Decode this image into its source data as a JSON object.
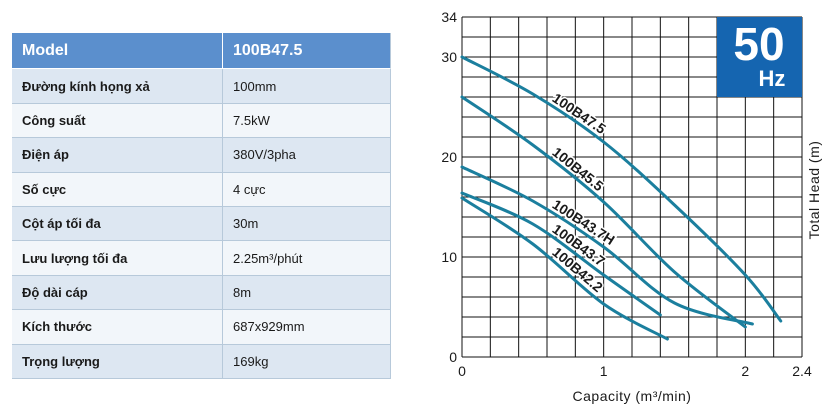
{
  "table": {
    "header": {
      "label": "Model",
      "value": "100B47.5"
    },
    "rows": [
      {
        "label": "Đường kính họng xả",
        "value": "100mm"
      },
      {
        "label": "Công suất",
        "value": "7.5kW"
      },
      {
        "label": "Điện áp",
        "value": "380V/3pha"
      },
      {
        "label": "Số cực",
        "value": "4 cực"
      },
      {
        "label": "Cột áp tối đa",
        "value": "30m"
      },
      {
        "label": "Lưu lượng tối đa",
        "value": "2.25m³/phút"
      },
      {
        "label": "Độ dài cáp",
        "value": "8m"
      },
      {
        "label": "Kích thước",
        "value": "687x929mm"
      },
      {
        "label": "Trọng lượng",
        "value": "169kg"
      }
    ]
  },
  "badge": {
    "value": "50",
    "unit": "Hz",
    "color": "#1565b0"
  },
  "chart_data": {
    "type": "line",
    "title": "",
    "xlabel": "Capacity (m³/min)",
    "ylabel": "Total Head (m)",
    "xlim": [
      0,
      2.4
    ],
    "ylim": [
      0,
      34
    ],
    "x_tick_labels": [
      "0",
      "1",
      "2",
      "2.4"
    ],
    "y_tick_labels": [
      "0",
      "10",
      "20",
      "30",
      "34"
    ],
    "grid": true,
    "line_color": "#1b7f9e",
    "series": [
      {
        "name": "100B47.5",
        "points": [
          [
            0,
            30
          ],
          [
            0.5,
            26.3
          ],
          [
            1.0,
            21.5
          ],
          [
            1.5,
            15.2
          ],
          [
            2.0,
            8.2
          ],
          [
            2.25,
            3.6
          ]
        ]
      },
      {
        "name": "100B45.5",
        "points": [
          [
            0,
            26
          ],
          [
            0.5,
            21.2
          ],
          [
            1.0,
            15.5
          ],
          [
            1.5,
            8.5
          ],
          [
            2.0,
            3.0
          ]
        ]
      },
      {
        "name": "100B43.7H",
        "points": [
          [
            0,
            19
          ],
          [
            0.5,
            15.6
          ],
          [
            1.0,
            11.0
          ],
          [
            1.5,
            5.4
          ],
          [
            2.05,
            3.3
          ]
        ]
      },
      {
        "name": "100B43.7",
        "points": [
          [
            0,
            16.4
          ],
          [
            0.5,
            13.3
          ],
          [
            1.0,
            8.2
          ],
          [
            1.4,
            4.2
          ]
        ]
      },
      {
        "name": "100B42.2",
        "points": [
          [
            0,
            15.9
          ],
          [
            0.5,
            11.3
          ],
          [
            1.0,
            5.3
          ],
          [
            1.45,
            1.8
          ]
        ]
      }
    ]
  }
}
